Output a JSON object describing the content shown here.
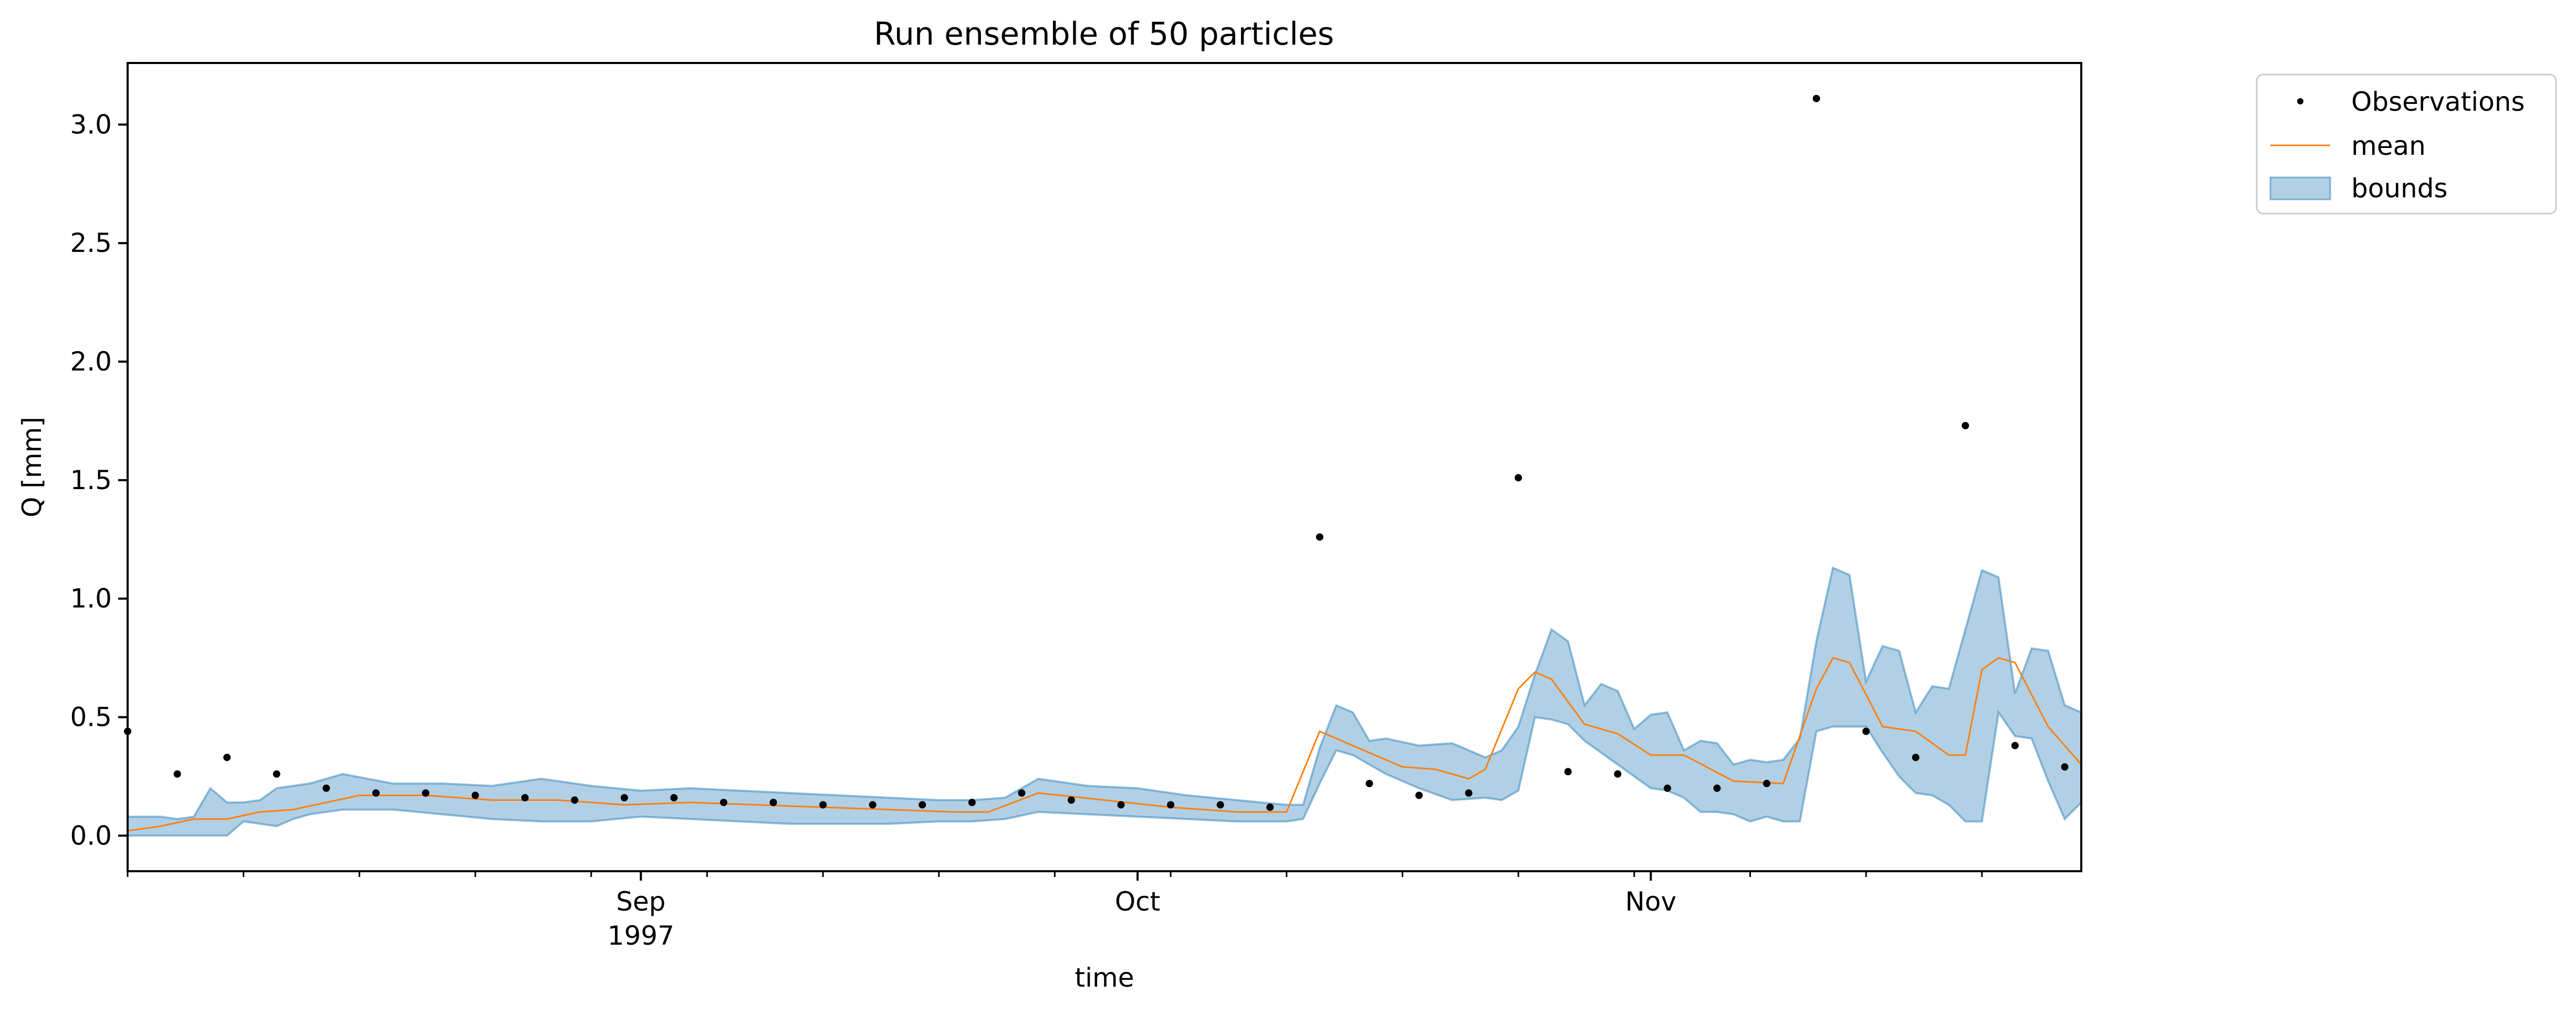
{
  "chart_data": {
    "type": "line",
    "title": "Run ensemble of 50 particles",
    "xlabel": "time",
    "ylabel": "Q [mm]",
    "ylim": [
      -0.15,
      3.26
    ],
    "yticks": [
      0.0,
      0.5,
      1.0,
      1.5,
      2.0,
      2.5,
      3.0
    ],
    "ytick_labels": [
      "0.0",
      "0.5",
      "1.0",
      "1.5",
      "2.0",
      "2.5",
      "3.0"
    ],
    "xlim": [
      "1997-08-01",
      "1997-11-27"
    ],
    "xticks_major": [
      {
        "date": "1997-09-01",
        "label": "Sep",
        "sublabel": "1997"
      },
      {
        "date": "1997-10-01",
        "label": "Oct",
        "sublabel": ""
      },
      {
        "date": "1997-11-01",
        "label": "Nov",
        "sublabel": ""
      }
    ],
    "legend": {
      "placement": "outside-upper-right",
      "entries": [
        "Observations",
        "mean",
        "bounds"
      ]
    },
    "grid": false,
    "colors": {
      "observations": "#000000",
      "mean": "#ff7f0e",
      "bounds_fill": "#1f77b4",
      "bounds_edge": "#1f77b4"
    },
    "observations": {
      "name": "Observations",
      "x": [
        "1997-08-01",
        "1997-08-04",
        "1997-08-07",
        "1997-08-10",
        "1997-08-13",
        "1997-08-16",
        "1997-08-19",
        "1997-08-22",
        "1997-08-25",
        "1997-08-28",
        "1997-08-31",
        "1997-09-03",
        "1997-09-06",
        "1997-09-09",
        "1997-09-12",
        "1997-09-15",
        "1997-09-18",
        "1997-09-21",
        "1997-09-24",
        "1997-09-27",
        "1997-09-30",
        "1997-10-03",
        "1997-10-06",
        "1997-10-09",
        "1997-10-12",
        "1997-10-15",
        "1997-10-18",
        "1997-10-21",
        "1997-10-24",
        "1997-10-27",
        "1997-10-30",
        "1997-11-02",
        "1997-11-05",
        "1997-11-08",
        "1997-11-11",
        "1997-11-14",
        "1997-11-17",
        "1997-11-20",
        "1997-11-23",
        "1997-11-26"
      ],
      "y": [
        0.44,
        0.26,
        0.33,
        0.26,
        0.2,
        0.18,
        0.18,
        0.17,
        0.16,
        0.15,
        0.16,
        0.16,
        0.14,
        0.14,
        0.13,
        0.13,
        0.13,
        0.14,
        0.18,
        0.15,
        0.13,
        0.13,
        0.13,
        0.12,
        1.26,
        0.22,
        0.17,
        0.18,
        1.51,
        0.27,
        0.26,
        0.2,
        0.2,
        0.22,
        3.11,
        0.44,
        0.33,
        1.73,
        0.38,
        0.29
      ]
    },
    "mean": {
      "name": "mean",
      "x": [
        "1997-08-01",
        "1997-08-03",
        "1997-08-05",
        "1997-08-07",
        "1997-08-09",
        "1997-08-11",
        "1997-08-15",
        "1997-08-19",
        "1997-08-23",
        "1997-08-27",
        "1997-08-31",
        "1997-09-04",
        "1997-09-08",
        "1997-09-12",
        "1997-09-16",
        "1997-09-20",
        "1997-09-22",
        "1997-09-25",
        "1997-09-29",
        "1997-10-03",
        "1997-10-07",
        "1997-10-10",
        "1997-10-12",
        "1997-10-13",
        "1997-10-15",
        "1997-10-17",
        "1997-10-19",
        "1997-10-21",
        "1997-10-22",
        "1997-10-24",
        "1997-10-25",
        "1997-10-26",
        "1997-10-28",
        "1997-10-30",
        "1997-11-01",
        "1997-11-03",
        "1997-11-06",
        "1997-11-09",
        "1997-11-11",
        "1997-11-12",
        "1997-11-13",
        "1997-11-15",
        "1997-11-17",
        "1997-11-19",
        "1997-11-20",
        "1997-11-21",
        "1997-11-22",
        "1997-11-23",
        "1997-11-25",
        "1997-11-27"
      ],
      "y": [
        0.02,
        0.04,
        0.07,
        0.07,
        0.1,
        0.11,
        0.17,
        0.17,
        0.15,
        0.15,
        0.13,
        0.14,
        0.13,
        0.12,
        0.11,
        0.1,
        0.1,
        0.18,
        0.15,
        0.12,
        0.1,
        0.1,
        0.44,
        0.41,
        0.35,
        0.29,
        0.28,
        0.24,
        0.28,
        0.62,
        0.69,
        0.66,
        0.47,
        0.43,
        0.34,
        0.34,
        0.23,
        0.22,
        0.62,
        0.75,
        0.73,
        0.46,
        0.44,
        0.34,
        0.34,
        0.7,
        0.75,
        0.73,
        0.46,
        0.3
      ]
    },
    "bounds": {
      "name": "bounds",
      "x": [
        "1997-08-01",
        "1997-08-03",
        "1997-08-04",
        "1997-08-05",
        "1997-08-06",
        "1997-08-07",
        "1997-08-08",
        "1997-08-09",
        "1997-08-10",
        "1997-08-11",
        "1997-08-12",
        "1997-08-14",
        "1997-08-17",
        "1997-08-20",
        "1997-08-23",
        "1997-08-26",
        "1997-08-29",
        "1997-09-01",
        "1997-09-04",
        "1997-09-07",
        "1997-09-10",
        "1997-09-13",
        "1997-09-16",
        "1997-09-19",
        "1997-09-21",
        "1997-09-23",
        "1997-09-25",
        "1997-09-28",
        "1997-10-01",
        "1997-10-04",
        "1997-10-07",
        "1997-10-10",
        "1997-10-11",
        "1997-10-12",
        "1997-10-13",
        "1997-10-14",
        "1997-10-15",
        "1997-10-16",
        "1997-10-18",
        "1997-10-20",
        "1997-10-22",
        "1997-10-23",
        "1997-10-24",
        "1997-10-25",
        "1997-10-26",
        "1997-10-27",
        "1997-10-28",
        "1997-10-29",
        "1997-10-30",
        "1997-10-31",
        "1997-11-01",
        "1997-11-02",
        "1997-11-03",
        "1997-11-04",
        "1997-11-05",
        "1997-11-06",
        "1997-11-07",
        "1997-11-08",
        "1997-11-09",
        "1997-11-10",
        "1997-11-11",
        "1997-11-12",
        "1997-11-13",
        "1997-11-14",
        "1997-11-15",
        "1997-11-16",
        "1997-11-17",
        "1997-11-18",
        "1997-11-19",
        "1997-11-20",
        "1997-11-21",
        "1997-11-22",
        "1997-11-23",
        "1997-11-24",
        "1997-11-25",
        "1997-11-26",
        "1997-11-27"
      ],
      "lower": [
        0.0,
        0.0,
        0.0,
        0.0,
        0.0,
        0.0,
        0.06,
        0.05,
        0.04,
        0.07,
        0.09,
        0.11,
        0.11,
        0.09,
        0.07,
        0.06,
        0.06,
        0.08,
        0.07,
        0.06,
        0.05,
        0.05,
        0.05,
        0.06,
        0.06,
        0.07,
        0.1,
        0.09,
        0.08,
        0.07,
        0.06,
        0.06,
        0.07,
        0.22,
        0.36,
        0.34,
        0.3,
        0.26,
        0.2,
        0.15,
        0.16,
        0.15,
        0.19,
        0.5,
        0.49,
        0.47,
        0.4,
        0.35,
        0.3,
        0.25,
        0.2,
        0.19,
        0.16,
        0.1,
        0.1,
        0.09,
        0.06,
        0.08,
        0.06,
        0.06,
        0.44,
        0.46,
        0.46,
        0.46,
        0.35,
        0.25,
        0.18,
        0.17,
        0.13,
        0.06,
        0.06,
        0.52,
        0.42,
        0.41,
        0.23,
        0.07,
        0.14
      ],
      "upper": [
        0.08,
        0.08,
        0.07,
        0.08,
        0.2,
        0.14,
        0.14,
        0.15,
        0.2,
        0.21,
        0.22,
        0.26,
        0.22,
        0.22,
        0.21,
        0.24,
        0.21,
        0.19,
        0.2,
        0.19,
        0.18,
        0.17,
        0.16,
        0.15,
        0.15,
        0.16,
        0.24,
        0.21,
        0.2,
        0.17,
        0.15,
        0.13,
        0.13,
        0.37,
        0.55,
        0.52,
        0.4,
        0.41,
        0.38,
        0.39,
        0.33,
        0.36,
        0.46,
        0.68,
        0.87,
        0.82,
        0.55,
        0.64,
        0.61,
        0.45,
        0.51,
        0.52,
        0.36,
        0.4,
        0.39,
        0.3,
        0.32,
        0.31,
        0.32,
        0.41,
        0.82,
        1.13,
        1.1,
        0.65,
        0.8,
        0.78,
        0.52,
        0.63,
        0.62,
        0.87,
        1.12,
        1.09,
        0.6,
        0.79,
        0.78,
        0.55,
        0.52
      ]
    }
  }
}
